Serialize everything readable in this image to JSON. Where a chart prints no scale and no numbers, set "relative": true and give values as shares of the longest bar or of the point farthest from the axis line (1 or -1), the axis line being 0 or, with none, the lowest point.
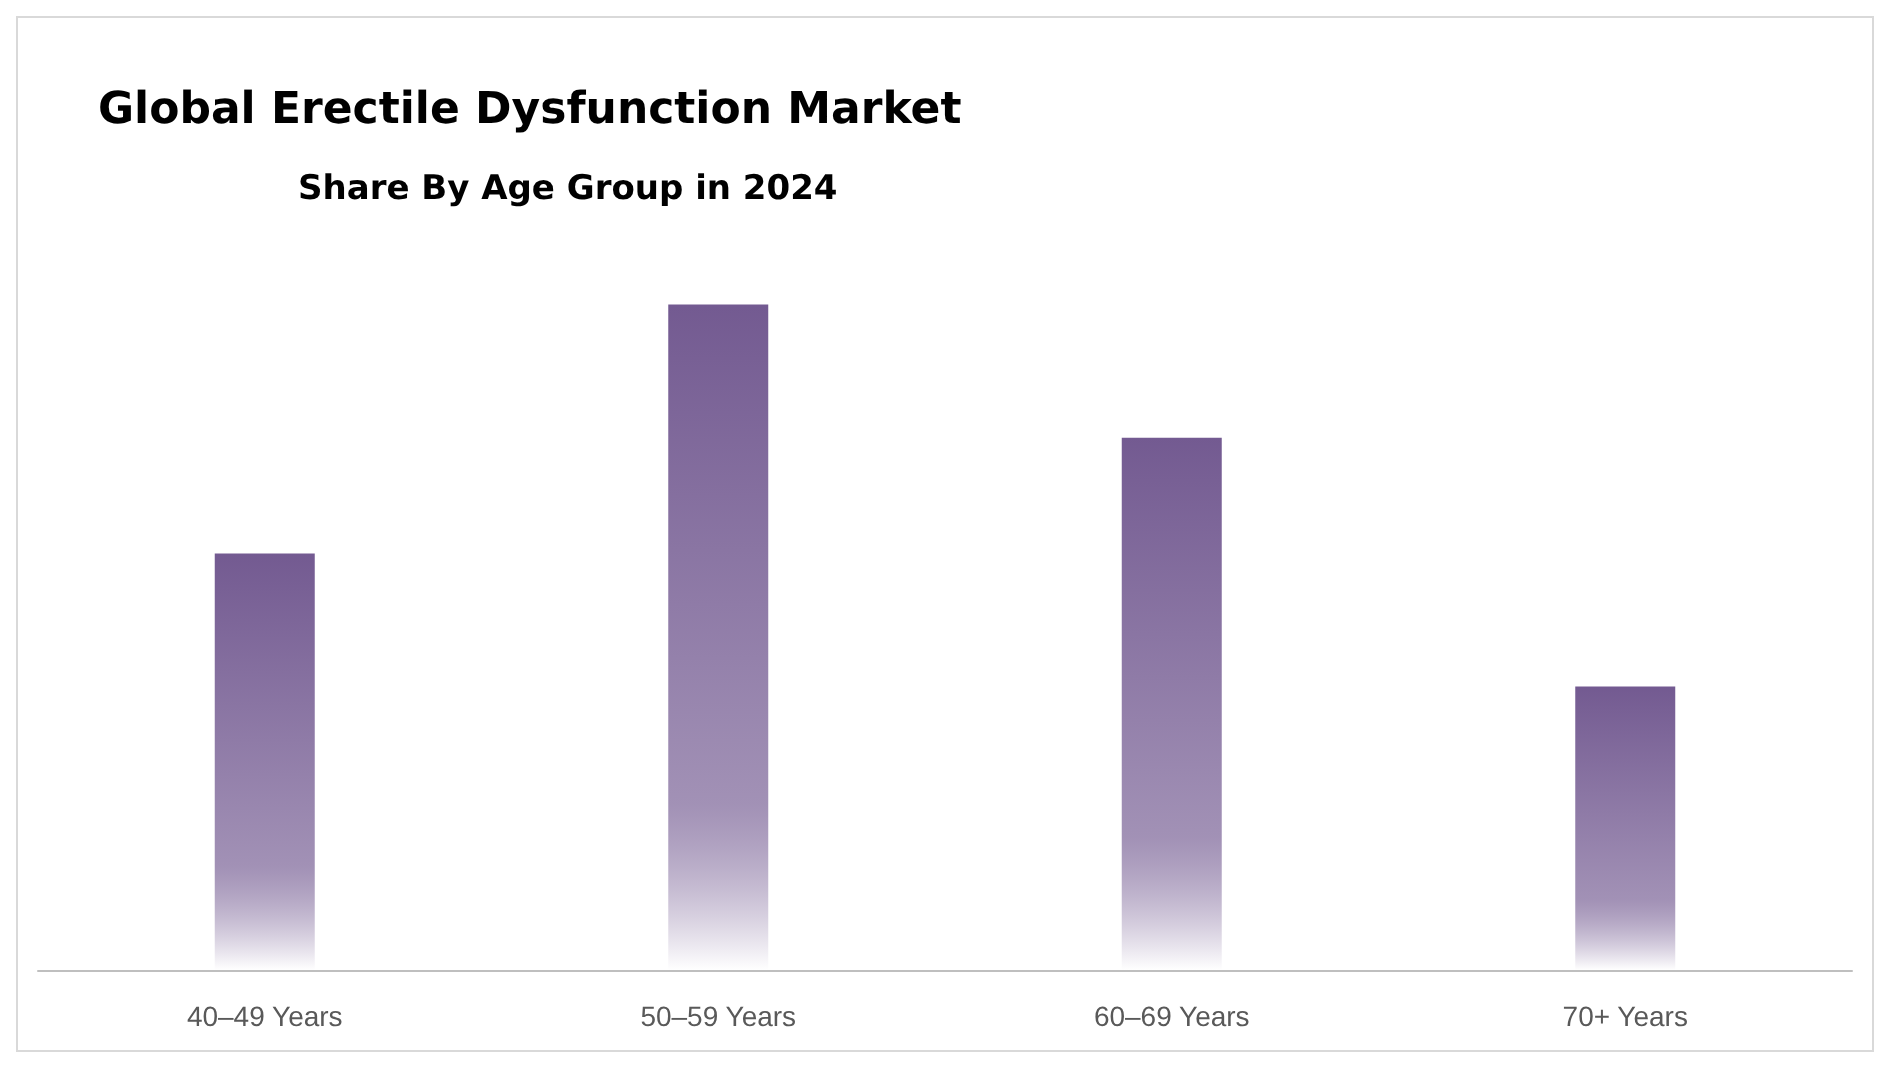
{
  "chart_data": {
    "type": "bar",
    "title": "Global Erectile Dysfunction Market",
    "subtitle": "Share By Age Group in 2024",
    "categories": [
      "40–49 Years",
      "50–59 Years",
      "60–69 Years",
      "70+ Years"
    ],
    "values": [
      0.626,
      1,
      0.8,
      0.426
    ],
    "color": "#735a91",
    "relative": true,
    "grid": false
  }
}
